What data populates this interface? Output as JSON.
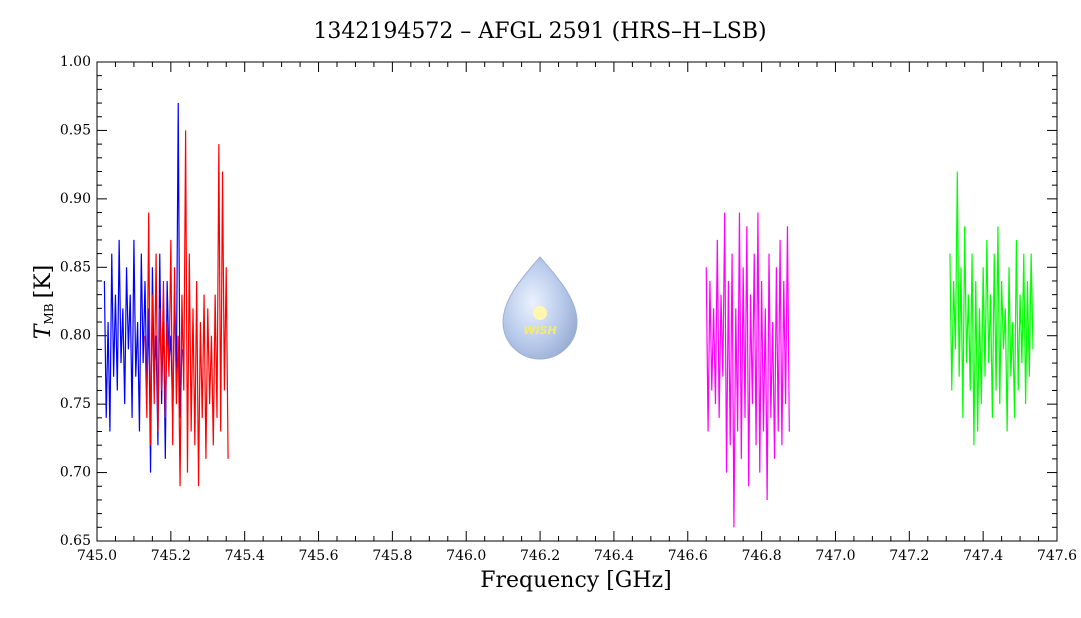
{
  "chart_data": {
    "type": "line",
    "title": "1342194572 – AFGL 2591 (HRS–H–LSB)",
    "xlabel": "Frequency [GHz]",
    "ylabel": {
      "symbol": "T",
      "subscript": "MB",
      "unit": "[K]"
    },
    "watermark": "WISH",
    "xlim": [
      745.0,
      747.6
    ],
    "ylim": [
      0.65,
      1.0
    ],
    "xticks": [
      {
        "value": 745.0,
        "label": "745.0"
      },
      {
        "value": 745.2,
        "label": "745.2"
      },
      {
        "value": 745.4,
        "label": "745.4"
      },
      {
        "value": 745.6,
        "label": "745.6"
      },
      {
        "value": 745.8,
        "label": "745.8"
      },
      {
        "value": 746.0,
        "label": "746.0"
      },
      {
        "value": 746.2,
        "label": "746.2"
      },
      {
        "value": 746.4,
        "label": "746.4"
      },
      {
        "value": 746.6,
        "label": "746.6"
      },
      {
        "value": 746.8,
        "label": "746.8"
      },
      {
        "value": 747.0,
        "label": "747.0"
      },
      {
        "value": 747.2,
        "label": "747.2"
      },
      {
        "value": 747.4,
        "label": "747.4"
      },
      {
        "value": 747.6,
        "label": "747.6"
      }
    ],
    "yticks": [
      {
        "value": 0.65,
        "label": "0.65"
      },
      {
        "value": 0.7,
        "label": "0.70"
      },
      {
        "value": 0.75,
        "label": "0.75"
      },
      {
        "value": 0.8,
        "label": "0.80"
      },
      {
        "value": 0.85,
        "label": "0.85"
      },
      {
        "value": 0.9,
        "label": "0.90"
      },
      {
        "value": 0.95,
        "label": "0.95"
      },
      {
        "value": 1.0,
        "label": "1.00"
      }
    ],
    "series": [
      {
        "color": "#0000ff",
        "x": [
          745.02,
          745.025,
          745.03,
          745.035,
          745.04,
          745.045,
          745.05,
          745.055,
          745.06,
          745.065,
          745.07,
          745.075,
          745.08,
          745.085,
          745.09,
          745.095,
          745.1,
          745.105,
          745.11,
          745.115,
          745.12,
          745.125,
          745.13,
          745.135,
          745.14,
          745.145,
          745.15,
          745.155,
          745.16,
          745.165,
          745.17,
          745.175,
          745.18,
          745.185,
          745.19,
          745.195,
          745.2,
          745.205,
          745.21,
          745.215,
          745.22,
          745.225,
          745.23
        ],
        "values": [
          0.84,
          0.74,
          0.81,
          0.73,
          0.86,
          0.77,
          0.83,
          0.76,
          0.87,
          0.78,
          0.82,
          0.75,
          0.85,
          0.79,
          0.83,
          0.74,
          0.87,
          0.77,
          0.81,
          0.73,
          0.86,
          0.78,
          0.84,
          0.76,
          0.82,
          0.7,
          0.85,
          0.77,
          0.8,
          0.72,
          0.86,
          0.75,
          0.82,
          0.71,
          0.84,
          0.78,
          0.8,
          0.74,
          0.83,
          0.77,
          0.97,
          0.74,
          0.79
        ]
      },
      {
        "color": "#ff0000",
        "x": [
          745.13,
          745.135,
          745.14,
          745.145,
          745.15,
          745.155,
          745.16,
          745.165,
          745.17,
          745.175,
          745.18,
          745.185,
          745.19,
          745.195,
          745.2,
          745.205,
          745.21,
          745.215,
          745.22,
          745.225,
          745.23,
          745.235,
          745.24,
          745.245,
          745.25,
          745.255,
          745.26,
          745.265,
          745.27,
          745.275,
          745.28,
          745.285,
          745.29,
          745.295,
          745.3,
          745.305,
          745.31,
          745.315,
          745.32,
          745.325,
          745.33,
          745.335,
          745.34,
          745.345,
          745.35,
          745.355
        ],
        "values": [
          0.8,
          0.74,
          0.89,
          0.72,
          0.83,
          0.75,
          0.86,
          0.73,
          0.82,
          0.76,
          0.84,
          0.74,
          0.81,
          0.77,
          0.87,
          0.72,
          0.85,
          0.75,
          0.8,
          0.69,
          0.83,
          0.76,
          0.95,
          0.7,
          0.86,
          0.73,
          0.82,
          0.72,
          0.84,
          0.69,
          0.81,
          0.74,
          0.83,
          0.71,
          0.82,
          0.75,
          0.8,
          0.72,
          0.83,
          0.74,
          0.94,
          0.73,
          0.92,
          0.76,
          0.85,
          0.71
        ]
      },
      {
        "color": "#ff00ff",
        "x": [
          746.65,
          746.655,
          746.66,
          746.665,
          746.67,
          746.675,
          746.68,
          746.685,
          746.69,
          746.695,
          746.7,
          746.705,
          746.71,
          746.715,
          746.72,
          746.725,
          746.73,
          746.735,
          746.74,
          746.745,
          746.75,
          746.755,
          746.76,
          746.765,
          746.77,
          746.775,
          746.78,
          746.785,
          746.79,
          746.795,
          746.8,
          746.805,
          746.81,
          746.815,
          746.82,
          746.825,
          746.83,
          746.835,
          746.84,
          746.845,
          746.85,
          746.855,
          746.86,
          746.865,
          746.87,
          746.875
        ],
        "values": [
          0.85,
          0.73,
          0.84,
          0.76,
          0.82,
          0.75,
          0.87,
          0.74,
          0.83,
          0.77,
          0.89,
          0.7,
          0.84,
          0.72,
          0.86,
          0.66,
          0.82,
          0.73,
          0.89,
          0.71,
          0.85,
          0.74,
          0.88,
          0.69,
          0.83,
          0.75,
          0.86,
          0.72,
          0.89,
          0.7,
          0.84,
          0.73,
          0.82,
          0.68,
          0.86,
          0.74,
          0.81,
          0.71,
          0.85,
          0.73,
          0.87,
          0.72,
          0.84,
          0.75,
          0.88,
          0.73
        ]
      },
      {
        "color": "#00ff00",
        "x": [
          747.31,
          747.315,
          747.32,
          747.325,
          747.33,
          747.335,
          747.34,
          747.345,
          747.35,
          747.355,
          747.36,
          747.365,
          747.37,
          747.375,
          747.38,
          747.385,
          747.39,
          747.395,
          747.4,
          747.405,
          747.41,
          747.415,
          747.42,
          747.425,
          747.43,
          747.435,
          747.44,
          747.445,
          747.45,
          747.455,
          747.46,
          747.465,
          747.47,
          747.475,
          747.48,
          747.485,
          747.49,
          747.495,
          747.5,
          747.505,
          747.51,
          747.515,
          747.52,
          747.525,
          747.53,
          747.535
        ],
        "values": [
          0.86,
          0.76,
          0.84,
          0.79,
          0.92,
          0.77,
          0.85,
          0.74,
          0.88,
          0.78,
          0.83,
          0.76,
          0.86,
          0.72,
          0.84,
          0.73,
          0.82,
          0.75,
          0.85,
          0.77,
          0.87,
          0.78,
          0.83,
          0.74,
          0.86,
          0.76,
          0.88,
          0.75,
          0.84,
          0.79,
          0.82,
          0.73,
          0.85,
          0.77,
          0.81,
          0.74,
          0.87,
          0.76,
          0.83,
          0.78,
          0.86,
          0.75,
          0.84,
          0.77,
          0.86,
          0.79
        ]
      }
    ]
  }
}
